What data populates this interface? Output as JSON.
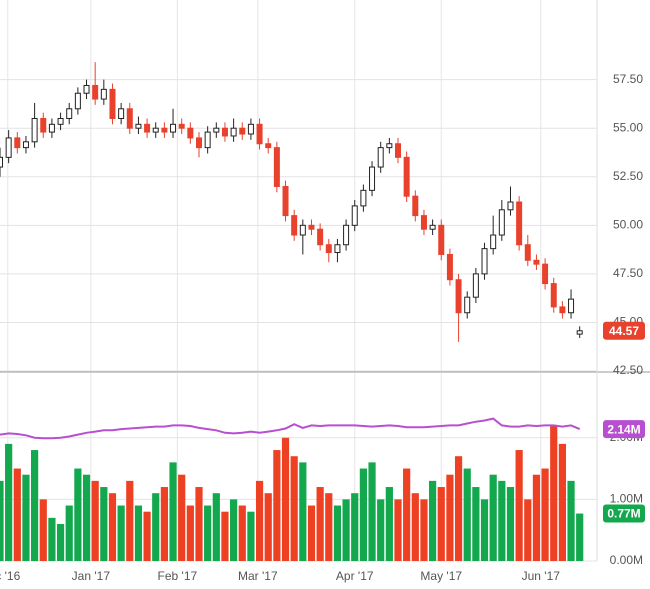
{
  "chart_data": [
    {
      "type": "candlestick",
      "up_color": "#ffffff",
      "down_color": "#e8412c",
      "x": [
        0,
        2,
        4,
        6,
        8,
        10,
        12,
        14,
        16,
        18,
        20,
        22,
        24,
        26,
        28,
        30,
        32,
        34,
        36,
        38,
        40,
        42,
        44,
        46,
        48,
        50,
        52,
        54,
        56,
        58,
        60,
        62,
        64,
        66,
        68,
        70,
        72,
        74,
        76,
        78,
        80,
        82,
        84,
        86,
        88,
        90,
        92,
        94,
        96,
        98,
        100,
        102,
        104,
        106,
        108,
        110,
        112,
        114,
        116,
        118,
        120,
        122,
        124,
        126,
        128,
        130,
        132,
        134
      ],
      "open": [
        53.0,
        53.5,
        54.5,
        54.0,
        54.3,
        55.5,
        54.8,
        55.2,
        55.5,
        56.0,
        56.8,
        57.2,
        56.5,
        57.0,
        55.5,
        56.0,
        55.0,
        55.2,
        54.8,
        55.0,
        54.8,
        55.2,
        55.0,
        54.5,
        54.0,
        54.8,
        55.0,
        54.6,
        55.0,
        54.7,
        55.2,
        54.2,
        54.0,
        52.0,
        50.5,
        49.5,
        50.0,
        49.8,
        49.0,
        48.6,
        49.0,
        50.0,
        51.0,
        51.8,
        53.0,
        54.0,
        54.2,
        53.5,
        51.5,
        50.5,
        49.8,
        50.0,
        48.5,
        47.2,
        45.5,
        46.3,
        47.5,
        48.8,
        49.5,
        50.8,
        51.2,
        49.0,
        48.2,
        48.0,
        47.0,
        45.8,
        45.5,
        44.4
      ],
      "high": [
        54.0,
        54.9,
        54.8,
        54.6,
        56.3,
        55.8,
        55.5,
        55.8,
        56.3,
        57.1,
        57.5,
        58.4,
        57.5,
        57.3,
        56.3,
        56.3,
        55.6,
        55.5,
        55.3,
        55.3,
        56.0,
        55.5,
        55.3,
        54.8,
        55.1,
        55.3,
        55.3,
        55.5,
        55.3,
        55.5,
        55.5,
        54.5,
        54.3,
        52.3,
        50.8,
        50.3,
        50.3,
        50.1,
        49.3,
        49.3,
        50.3,
        51.3,
        52.1,
        53.3,
        54.3,
        54.5,
        54.5,
        53.8,
        51.8,
        50.8,
        50.3,
        50.3,
        48.8,
        47.5,
        46.6,
        47.8,
        49.1,
        50.5,
        51.3,
        52.0,
        51.5,
        49.5,
        48.5,
        48.3,
        47.3,
        46.1,
        46.7,
        44.8
      ],
      "low": [
        52.5,
        53.2,
        53.7,
        53.7,
        54.0,
        54.5,
        54.5,
        54.9,
        55.2,
        55.7,
        56.5,
        56.2,
        56.2,
        55.2,
        55.2,
        54.7,
        54.7,
        54.5,
        54.5,
        54.5,
        54.5,
        54.7,
        54.2,
        53.5,
        53.7,
        54.5,
        54.3,
        54.3,
        54.4,
        54.4,
        53.9,
        53.7,
        51.7,
        50.2,
        49.2,
        48.5,
        49.5,
        48.7,
        48.1,
        48.1,
        48.7,
        49.7,
        50.7,
        51.5,
        52.7,
        53.7,
        53.2,
        51.2,
        50.2,
        49.5,
        49.5,
        48.2,
        46.9,
        44.0,
        45.2,
        46.0,
        47.2,
        48.5,
        49.2,
        50.5,
        48.7,
        47.9,
        47.7,
        46.7,
        45.5,
        45.2,
        45.2,
        44.2
      ],
      "close": [
        53.5,
        54.5,
        54.0,
        54.3,
        55.5,
        54.8,
        55.2,
        55.5,
        56.0,
        56.8,
        57.2,
        56.5,
        57.0,
        55.5,
        56.0,
        55.0,
        55.2,
        54.8,
        55.0,
        54.8,
        55.2,
        55.0,
        54.5,
        54.0,
        54.8,
        55.0,
        54.6,
        55.0,
        54.7,
        55.2,
        54.2,
        54.0,
        52.0,
        50.5,
        49.5,
        50.0,
        49.8,
        49.0,
        48.6,
        49.0,
        50.0,
        51.0,
        51.8,
        53.0,
        54.0,
        54.2,
        53.5,
        51.5,
        50.5,
        49.8,
        50.0,
        48.5,
        47.2,
        45.5,
        46.3,
        47.5,
        48.8,
        49.5,
        50.8,
        51.2,
        49.0,
        48.2,
        48.0,
        47.0,
        45.8,
        45.5,
        46.2,
        44.57
      ],
      "xlim": [
        0,
        138
      ],
      "ylim": [
        42.5,
        61.6
      ],
      "yticks": [
        {
          "value": 42.5,
          "label": "42.50"
        },
        {
          "value": 45,
          "label": "45.00"
        },
        {
          "value": 47.5,
          "label": "47.50"
        },
        {
          "value": 50,
          "label": "50.00"
        },
        {
          "value": 52.5,
          "label": "52.50"
        },
        {
          "value": 55,
          "label": "55.00"
        },
        {
          "value": 57.5,
          "label": "57.50"
        }
      ],
      "last_label": {
        "value": 44.57,
        "label": "44.57",
        "color": "#e8412c"
      },
      "grid": true
    },
    {
      "type": "volume",
      "x": [
        0,
        2,
        4,
        6,
        8,
        10,
        12,
        14,
        16,
        18,
        20,
        22,
        24,
        26,
        28,
        30,
        32,
        34,
        36,
        38,
        40,
        42,
        44,
        46,
        48,
        50,
        52,
        54,
        56,
        58,
        60,
        62,
        64,
        66,
        68,
        70,
        72,
        74,
        76,
        78,
        80,
        82,
        84,
        86,
        88,
        90,
        92,
        94,
        96,
        98,
        100,
        102,
        104,
        106,
        108,
        110,
        112,
        114,
        116,
        118,
        120,
        122,
        124,
        126,
        128,
        130,
        132,
        134
      ],
      "up_color": "#13a84e",
      "down_color": "#ee4124",
      "values": [
        1.3,
        1.9,
        1.5,
        1.4,
        1.8,
        1.0,
        0.7,
        0.6,
        0.9,
        1.5,
        1.4,
        1.3,
        1.2,
        1.1,
        0.9,
        1.3,
        0.9,
        0.8,
        1.1,
        1.2,
        1.6,
        1.4,
        0.9,
        1.2,
        0.9,
        1.1,
        0.8,
        1.0,
        0.9,
        0.8,
        1.3,
        1.1,
        1.8,
        2.0,
        1.7,
        1.6,
        0.9,
        1.2,
        1.1,
        0.9,
        1.0,
        1.1,
        1.5,
        1.6,
        1.0,
        1.2,
        1.0,
        1.5,
        1.1,
        1.0,
        1.3,
        1.2,
        1.4,
        1.7,
        1.5,
        1.2,
        1.0,
        1.4,
        1.3,
        1.2,
        1.8,
        1.0,
        1.4,
        1.5,
        2.2,
        1.9,
        1.3,
        0.77
      ],
      "average": {
        "color": "#b84fd1",
        "values": [
          2.05,
          2.07,
          2.06,
          2.04,
          2.0,
          1.99,
          1.99,
          2.0,
          2.02,
          2.05,
          2.08,
          2.1,
          2.12,
          2.12,
          2.14,
          2.15,
          2.16,
          2.17,
          2.18,
          2.18,
          2.2,
          2.2,
          2.19,
          2.16,
          2.14,
          2.12,
          2.08,
          2.07,
          2.08,
          2.1,
          2.08,
          2.1,
          2.12,
          2.15,
          2.22,
          2.16,
          2.2,
          2.19,
          2.2,
          2.2,
          2.2,
          2.2,
          2.19,
          2.18,
          2.19,
          2.2,
          2.19,
          2.17,
          2.17,
          2.17,
          2.18,
          2.19,
          2.2,
          2.2,
          2.23,
          2.26,
          2.28,
          2.31,
          2.2,
          2.18,
          2.18,
          2.2,
          2.19,
          2.2,
          2.2,
          2.18,
          2.2,
          2.14
        ]
      },
      "xlim": [
        0,
        138
      ],
      "ylim": [
        0,
        3.05
      ],
      "xticks": [
        {
          "value": 1.8,
          "label": "c '16"
        },
        {
          "value": 21,
          "label": "Jan '17"
        },
        {
          "value": 41,
          "label": "Feb '17"
        },
        {
          "value": 59.6,
          "label": "Mar '17"
        },
        {
          "value": 82,
          "label": "Apr '17"
        },
        {
          "value": 102,
          "label": "May '17"
        },
        {
          "value": 125,
          "label": "Jun '17"
        }
      ],
      "yticks": [
        {
          "value": 0,
          "label": "0.00M"
        },
        {
          "value": 1,
          "label": "1.00M"
        },
        {
          "value": 2,
          "label": "2.00M"
        }
      ],
      "ma_label": {
        "value": 2.14,
        "label": "2.14M"
      },
      "last_label": {
        "value": 0.77,
        "label": "0.77M",
        "color": "#13a84e"
      },
      "grid": true
    }
  ]
}
